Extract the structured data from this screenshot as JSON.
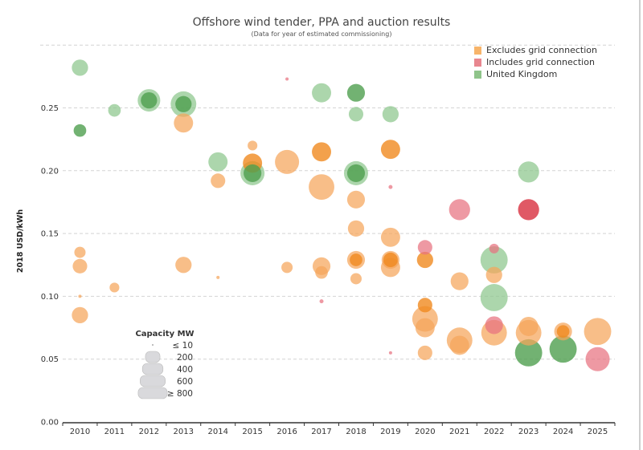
{
  "chart_data": {
    "type": "scatter",
    "title": "Offshore wind tender, PPA and auction results",
    "subtitle": "(Data for year of estimated commissioning)",
    "ylabel": "2018 USD/kWh",
    "xlabel": "",
    "ylim": [
      0,
      0.3
    ],
    "yticks": [
      "0.00",
      "0.05",
      "0.10",
      "0.15",
      "0.20",
      "0.25"
    ],
    "categories": [
      "2010",
      "2011",
      "2012",
      "2013",
      "2014",
      "2015",
      "2016",
      "2017",
      "2018",
      "2019",
      "2020",
      "2021",
      "2022",
      "2023",
      "2024",
      "2025"
    ],
    "grid": true,
    "legend_position": "top-right",
    "series": [
      {
        "key": "exc",
        "name": "Excludes grid connection",
        "color": "#f5a55a",
        "dark_color": "#f0891f",
        "swatch": "#f7b46a"
      },
      {
        "key": "inc",
        "name": "Includes grid connection",
        "color": "#e8727f",
        "dark_color": "#d8303f",
        "swatch": "#e8868f"
      },
      {
        "key": "uk",
        "name": "United Kingdom",
        "color": "#8cc68c",
        "dark_color": "#4f9f4f",
        "swatch": "#8fc48a"
      }
    ],
    "size_legend": {
      "title": "Capacity MW",
      "entries": [
        {
          "label": "≤ 10",
          "mw": 10
        },
        {
          "label": "200",
          "mw": 200
        },
        {
          "label": "400",
          "mw": 400
        },
        {
          "label": "600",
          "mw": 600
        },
        {
          "label": "≥ 800",
          "mw": 800
        }
      ]
    },
    "points": [
      {
        "year": "2010",
        "value": 0.282,
        "series": "uk",
        "mw": 250
      },
      {
        "year": "2010",
        "value": 0.232,
        "series": "uk",
        "mw": 150,
        "dark": true
      },
      {
        "year": "2010",
        "value": 0.135,
        "series": "exc",
        "mw": 120
      },
      {
        "year": "2010",
        "value": 0.124,
        "series": "exc",
        "mw": 200
      },
      {
        "year": "2010",
        "value": 0.1,
        "series": "exc",
        "mw": 10
      },
      {
        "year": "2010",
        "value": 0.085,
        "series": "exc",
        "mw": 250
      },
      {
        "year": "2011",
        "value": 0.248,
        "series": "uk",
        "mw": 150
      },
      {
        "year": "2011",
        "value": 0.107,
        "series": "exc",
        "mw": 90
      },
      {
        "year": "2012",
        "value": 0.256,
        "series": "uk",
        "mw": 480
      },
      {
        "year": "2012",
        "value": 0.256,
        "series": "uk",
        "mw": 250,
        "dark": true
      },
      {
        "year": "2013",
        "value": 0.253,
        "series": "uk",
        "mw": 620
      },
      {
        "year": "2013",
        "value": 0.253,
        "series": "uk",
        "mw": 250,
        "dark": true
      },
      {
        "year": "2013",
        "value": 0.238,
        "series": "exc",
        "mw": 350
      },
      {
        "year": "2013",
        "value": 0.125,
        "series": "exc",
        "mw": 250
      },
      {
        "year": "2014",
        "value": 0.207,
        "series": "uk",
        "mw": 350
      },
      {
        "year": "2014",
        "value": 0.192,
        "series": "exc",
        "mw": 200
      },
      {
        "year": "2014",
        "value": 0.115,
        "series": "exc",
        "mw": 10
      },
      {
        "year": "2015",
        "value": 0.198,
        "series": "uk",
        "mw": 550
      },
      {
        "year": "2015",
        "value": 0.198,
        "series": "uk",
        "mw": 300,
        "dark": true
      },
      {
        "year": "2015",
        "value": 0.22,
        "series": "exc",
        "mw": 90
      },
      {
        "year": "2015",
        "value": 0.206,
        "series": "exc",
        "mw": 350,
        "dark": true
      },
      {
        "year": "2016",
        "value": 0.273,
        "series": "inc",
        "mw": 10
      },
      {
        "year": "2016",
        "value": 0.207,
        "series": "exc",
        "mw": 550
      },
      {
        "year": "2016",
        "value": 0.123,
        "series": "exc",
        "mw": 120
      },
      {
        "year": "2017",
        "value": 0.262,
        "series": "uk",
        "mw": 350
      },
      {
        "year": "2017",
        "value": 0.215,
        "series": "exc",
        "mw": 350,
        "dark": true
      },
      {
        "year": "2017",
        "value": 0.187,
        "series": "exc",
        "mw": 620
      },
      {
        "year": "2017",
        "value": 0.124,
        "series": "exc",
        "mw": 300
      },
      {
        "year": "2017",
        "value": 0.119,
        "series": "exc",
        "mw": 150
      },
      {
        "year": "2017",
        "value": 0.096,
        "series": "inc",
        "mw": 15
      },
      {
        "year": "2018",
        "value": 0.262,
        "series": "uk",
        "mw": 300,
        "dark": true
      },
      {
        "year": "2018",
        "value": 0.245,
        "series": "uk",
        "mw": 200
      },
      {
        "year": "2018",
        "value": 0.198,
        "series": "uk",
        "mw": 550
      },
      {
        "year": "2018",
        "value": 0.198,
        "series": "uk",
        "mw": 300,
        "dark": true
      },
      {
        "year": "2018",
        "value": 0.177,
        "series": "exc",
        "mw": 300
      },
      {
        "year": "2018",
        "value": 0.154,
        "series": "exc",
        "mw": 250
      },
      {
        "year": "2018",
        "value": 0.129,
        "series": "exc",
        "mw": 300
      },
      {
        "year": "2018",
        "value": 0.129,
        "series": "exc",
        "mw": 150,
        "dark": true
      },
      {
        "year": "2018",
        "value": 0.114,
        "series": "exc",
        "mw": 120
      },
      {
        "year": "2019",
        "value": 0.245,
        "series": "uk",
        "mw": 250
      },
      {
        "year": "2019",
        "value": 0.217,
        "series": "exc",
        "mw": 350,
        "dark": true
      },
      {
        "year": "2019",
        "value": 0.187,
        "series": "inc",
        "mw": 15
      },
      {
        "year": "2019",
        "value": 0.147,
        "series": "exc",
        "mw": 350
      },
      {
        "year": "2019",
        "value": 0.129,
        "series": "exc",
        "mw": 300
      },
      {
        "year": "2019",
        "value": 0.129,
        "series": "exc",
        "mw": 200,
        "dark": true
      },
      {
        "year": "2019",
        "value": 0.123,
        "series": "exc",
        "mw": 350
      },
      {
        "year": "2019",
        "value": 0.055,
        "series": "inc",
        "mw": 10
      },
      {
        "year": "2020",
        "value": 0.139,
        "series": "inc",
        "mw": 200
      },
      {
        "year": "2020",
        "value": 0.129,
        "series": "exc",
        "mw": 250,
        "dark": true
      },
      {
        "year": "2020",
        "value": 0.093,
        "series": "exc",
        "mw": 200,
        "dark": true
      },
      {
        "year": "2020",
        "value": 0.082,
        "series": "exc",
        "mw": 620
      },
      {
        "year": "2020",
        "value": 0.075,
        "series": "exc",
        "mw": 350
      },
      {
        "year": "2020",
        "value": 0.055,
        "series": "exc",
        "mw": 200
      },
      {
        "year": "2021",
        "value": 0.169,
        "series": "inc",
        "mw": 420
      },
      {
        "year": "2021",
        "value": 0.112,
        "series": "exc",
        "mw": 300
      },
      {
        "year": "2021",
        "value": 0.065,
        "series": "exc",
        "mw": 620
      },
      {
        "year": "2021",
        "value": 0.061,
        "series": "exc",
        "mw": 350
      },
      {
        "year": "2022",
        "value": 0.129,
        "series": "uk",
        "mw": 700
      },
      {
        "year": "2022",
        "value": 0.138,
        "series": "inc",
        "mw": 90
      },
      {
        "year": "2022",
        "value": 0.117,
        "series": "exc",
        "mw": 250
      },
      {
        "year": "2022",
        "value": 0.099,
        "series": "uk",
        "mw": 700
      },
      {
        "year": "2022",
        "value": 0.071,
        "series": "exc",
        "mw": 620
      },
      {
        "year": "2022",
        "value": 0.077,
        "series": "inc",
        "mw": 300
      },
      {
        "year": "2023",
        "value": 0.199,
        "series": "uk",
        "mw": 420
      },
      {
        "year": "2023",
        "value": 0.169,
        "series": "inc",
        "mw": 420,
        "dark": true
      },
      {
        "year": "2023",
        "value": 0.071,
        "series": "exc",
        "mw": 620
      },
      {
        "year": "2023",
        "value": 0.076,
        "series": "exc",
        "mw": 350
      },
      {
        "year": "2023",
        "value": 0.055,
        "series": "uk",
        "mw": 700,
        "dark": true
      },
      {
        "year": "2024",
        "value": 0.072,
        "series": "exc",
        "mw": 300
      },
      {
        "year": "2024",
        "value": 0.072,
        "series": "exc",
        "mw": 150,
        "dark": true
      },
      {
        "year": "2024",
        "value": 0.058,
        "series": "uk",
        "mw": 700,
        "dark": true
      },
      {
        "year": "2025",
        "value": 0.072,
        "series": "exc",
        "mw": 700
      },
      {
        "year": "2025",
        "value": 0.05,
        "series": "inc",
        "mw": 550
      }
    ]
  }
}
